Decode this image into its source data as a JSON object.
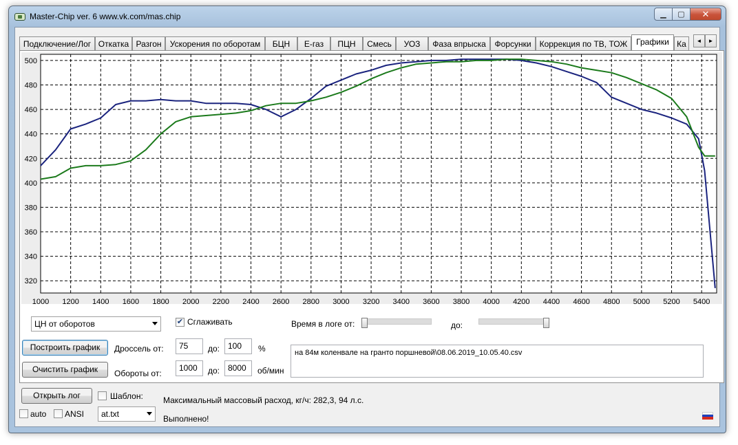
{
  "window": {
    "title": "Master-Chip ver. 6  www.vk.com/mas.chip",
    "minimize": "▁",
    "maximize": "▢",
    "close": "✕"
  },
  "tabs": [
    {
      "label": "Подключение/Лог",
      "active": false
    },
    {
      "label": "Откатка",
      "active": false
    },
    {
      "label": "Разгон",
      "active": false
    },
    {
      "label": "Ускорения по оборотам",
      "active": false
    },
    {
      "label": "БЦН",
      "active": false
    },
    {
      "label": "Е-газ",
      "active": false
    },
    {
      "label": "ПЦН",
      "active": false
    },
    {
      "label": "Смесь",
      "active": false
    },
    {
      "label": "УОЗ",
      "active": false
    },
    {
      "label": "Фаза впрыска",
      "active": false
    },
    {
      "label": "Форсунки",
      "active": false
    },
    {
      "label": "Коррекция по ТВ, ТОЖ",
      "active": false
    },
    {
      "label": "Графики",
      "active": true
    },
    {
      "label": "Ка",
      "active": false
    }
  ],
  "tab_scroll": {
    "left": "◄",
    "right": "►"
  },
  "chart_data": {
    "type": "line",
    "xlim": [
      1000,
      5500
    ],
    "ylim": [
      310,
      505
    ],
    "xticks": [
      1000,
      1200,
      1400,
      1600,
      1800,
      2000,
      2200,
      2400,
      2600,
      2800,
      3000,
      3200,
      3400,
      3600,
      3800,
      4000,
      4200,
      4400,
      4600,
      4800,
      5000,
      5200,
      5400
    ],
    "yticks": [
      320,
      340,
      360,
      380,
      400,
      420,
      440,
      460,
      480,
      500
    ],
    "grid": true,
    "grid_style": "dashed",
    "series": [
      {
        "color": "#1a237e",
        "x": [
          1000,
          1100,
          1200,
          1300,
          1400,
          1500,
          1600,
          1700,
          1800,
          1900,
          2000,
          2100,
          2200,
          2300,
          2400,
          2500,
          2600,
          2700,
          2800,
          2900,
          3000,
          3100,
          3200,
          3300,
          3400,
          3500,
          3600,
          3700,
          3800,
          3900,
          4000,
          4100,
          4200,
          4300,
          4400,
          4500,
          4600,
          4700,
          4800,
          4900,
          5000,
          5100,
          5200,
          5300,
          5380,
          5420,
          5490
        ],
        "y": [
          414,
          427,
          444,
          448,
          453,
          464,
          467,
          467,
          468,
          467,
          467,
          465,
          465,
          465,
          464,
          460,
          454,
          460,
          469,
          479,
          484,
          489,
          492,
          496,
          498,
          499,
          500,
          500,
          501,
          501,
          501,
          501,
          500,
          498,
          495,
          491,
          487,
          482,
          470,
          465,
          460,
          457,
          453,
          448,
          436,
          410,
          314
        ]
      },
      {
        "color": "#1b7a1b",
        "x": [
          1000,
          1100,
          1200,
          1300,
          1400,
          1500,
          1600,
          1700,
          1800,
          1900,
          2000,
          2100,
          2200,
          2300,
          2400,
          2500,
          2600,
          2700,
          2800,
          2900,
          3000,
          3100,
          3200,
          3300,
          3400,
          3500,
          3600,
          3700,
          3800,
          3900,
          4000,
          4100,
          4200,
          4300,
          4400,
          4500,
          4600,
          4700,
          4800,
          4900,
          5000,
          5100,
          5200,
          5300,
          5380,
          5420,
          5490
        ],
        "y": [
          403,
          405,
          412,
          414,
          414,
          415,
          418,
          427,
          440,
          450,
          454,
          455,
          456,
          457,
          459,
          463,
          465,
          465,
          467,
          470,
          474,
          479,
          485,
          490,
          494,
          497,
          498,
          499,
          499,
          500,
          500,
          501,
          501,
          500,
          499,
          497,
          494,
          492,
          490,
          486,
          481,
          476,
          469,
          454,
          429,
          422,
          422
        ]
      }
    ]
  },
  "controls": {
    "graph_type": "ЦН от оборотов",
    "smooth_checked": true,
    "smooth_label": "Сглаживать",
    "log_time_from_label": "Время в логе от:",
    "log_time_to_label": "до:",
    "slider_from": 0,
    "slider_to": 1,
    "build_button": "Построить график",
    "clear_button": "Очистить график",
    "throttle_from_label": "Дроссель от:",
    "throttle_from": "75",
    "throttle_to_label": "до:",
    "throttle_to": "100",
    "throttle_unit": "%",
    "rpm_from_label": "Обороты от:",
    "rpm_from": "1000",
    "rpm_to_label": "до:",
    "rpm_to": "8000",
    "rpm_unit": "об/мин",
    "log_file_text": "на 84м коленвале на гранто поршневой\\08.06.2019_10.05.40.csv"
  },
  "bottom": {
    "open_log_button": "Открыть лог",
    "template_label": "Шаблон:",
    "template_checked": false,
    "auto_label": "auto",
    "auto_checked": false,
    "ansi_label": "ANSI",
    "ansi_checked": false,
    "template_file": "at.txt",
    "max_flow_text": "Максимальный массовый расход, кг/ч: 282,3, 94 л.с.",
    "status_text": "Выполнено!",
    "flag_colors": [
      "#ffffff",
      "#1c3fbf",
      "#d52b1e"
    ]
  }
}
